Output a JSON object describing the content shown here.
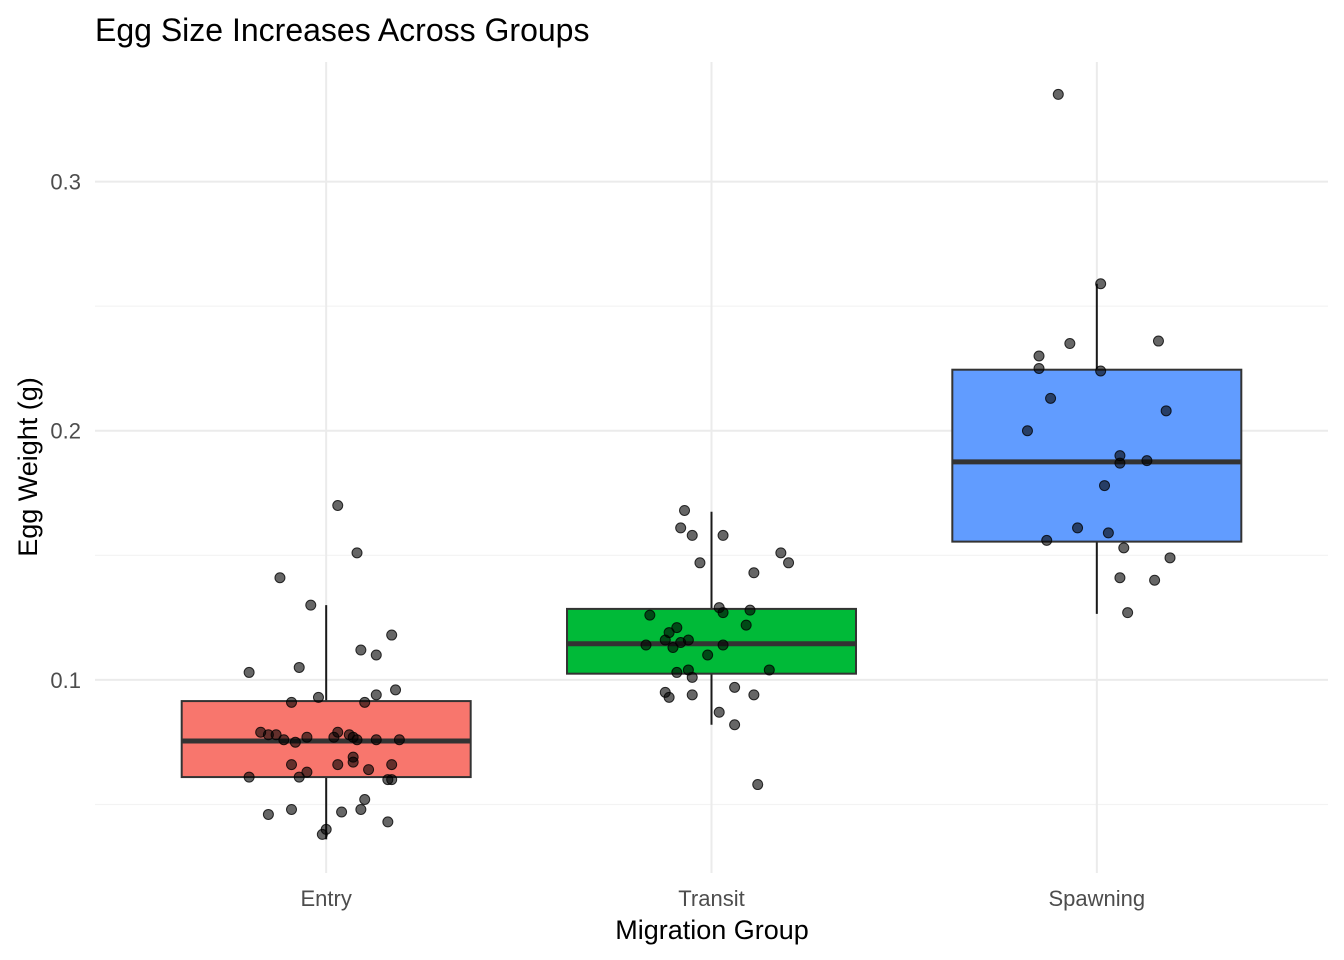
{
  "chart_data": {
    "type": "box",
    "title": "Egg Size Increases Across Groups",
    "xlabel": "Migration Group",
    "ylabel": "Egg Weight (g)",
    "ylim": [
      0.0225,
      0.348
    ],
    "y_ticks": [
      0.1,
      0.2,
      0.3
    ],
    "y_tick_labels": [
      "0.1",
      "0.2",
      "0.3"
    ],
    "y_minor_ticks": [
      0.05,
      0.15,
      0.25
    ],
    "grid": true,
    "legend": "none",
    "categories": [
      "Entry",
      "Transit",
      "Spawning"
    ],
    "boxes": [
      {
        "category": "Entry",
        "color": "#F8766D",
        "whisker_low": 0.036,
        "q1": 0.061,
        "median": 0.0755,
        "q3": 0.0915,
        "whisker_high": 0.13
      },
      {
        "category": "Transit",
        "color": "#00BA38",
        "whisker_low": 0.082,
        "q1": 0.1025,
        "median": 0.1145,
        "q3": 0.1285,
        "whisker_high": 0.1675
      },
      {
        "category": "Spawning",
        "color": "#619CFF",
        "whisker_low": 0.1265,
        "q1": 0.1555,
        "median": 0.1875,
        "q3": 0.2245,
        "whisker_high": 0.259
      }
    ],
    "points": [
      {
        "group": "Entry",
        "jitter": -0.2,
        "y": 0.103
      },
      {
        "group": "Entry",
        "jitter": -0.12,
        "y": 0.141
      },
      {
        "group": "Entry",
        "jitter": -0.04,
        "y": 0.13
      },
      {
        "group": "Entry",
        "jitter": 0.03,
        "y": 0.17
      },
      {
        "group": "Entry",
        "jitter": 0.08,
        "y": 0.151
      },
      {
        "group": "Entry",
        "jitter": 0.17,
        "y": 0.118
      },
      {
        "group": "Entry",
        "jitter": -0.07,
        "y": 0.105
      },
      {
        "group": "Entry",
        "jitter": 0.09,
        "y": 0.112
      },
      {
        "group": "Entry",
        "jitter": 0.13,
        "y": 0.11
      },
      {
        "group": "Entry",
        "jitter": -0.09,
        "y": 0.091
      },
      {
        "group": "Entry",
        "jitter": -0.02,
        "y": 0.093
      },
      {
        "group": "Entry",
        "jitter": 0.1,
        "y": 0.091
      },
      {
        "group": "Entry",
        "jitter": 0.13,
        "y": 0.094
      },
      {
        "group": "Entry",
        "jitter": 0.18,
        "y": 0.096
      },
      {
        "group": "Entry",
        "jitter": -0.17,
        "y": 0.079
      },
      {
        "group": "Entry",
        "jitter": -0.15,
        "y": 0.078
      },
      {
        "group": "Entry",
        "jitter": -0.13,
        "y": 0.078
      },
      {
        "group": "Entry",
        "jitter": -0.11,
        "y": 0.076
      },
      {
        "group": "Entry",
        "jitter": -0.08,
        "y": 0.075
      },
      {
        "group": "Entry",
        "jitter": -0.05,
        "y": 0.077
      },
      {
        "group": "Entry",
        "jitter": 0.02,
        "y": 0.077
      },
      {
        "group": "Entry",
        "jitter": 0.03,
        "y": 0.079
      },
      {
        "group": "Entry",
        "jitter": 0.06,
        "y": 0.078
      },
      {
        "group": "Entry",
        "jitter": 0.07,
        "y": 0.077
      },
      {
        "group": "Entry",
        "jitter": 0.08,
        "y": 0.076
      },
      {
        "group": "Entry",
        "jitter": 0.13,
        "y": 0.076
      },
      {
        "group": "Entry",
        "jitter": 0.19,
        "y": 0.076
      },
      {
        "group": "Entry",
        "jitter": -0.2,
        "y": 0.061
      },
      {
        "group": "Entry",
        "jitter": -0.09,
        "y": 0.066
      },
      {
        "group": "Entry",
        "jitter": -0.07,
        "y": 0.061
      },
      {
        "group": "Entry",
        "jitter": -0.05,
        "y": 0.063
      },
      {
        "group": "Entry",
        "jitter": 0.03,
        "y": 0.066
      },
      {
        "group": "Entry",
        "jitter": 0.07,
        "y": 0.067
      },
      {
        "group": "Entry",
        "jitter": 0.07,
        "y": 0.069
      },
      {
        "group": "Entry",
        "jitter": 0.11,
        "y": 0.064
      },
      {
        "group": "Entry",
        "jitter": 0.16,
        "y": 0.06
      },
      {
        "group": "Entry",
        "jitter": 0.17,
        "y": 0.06
      },
      {
        "group": "Entry",
        "jitter": 0.17,
        "y": 0.066
      },
      {
        "group": "Entry",
        "jitter": -0.15,
        "y": 0.046
      },
      {
        "group": "Entry",
        "jitter": -0.09,
        "y": 0.048
      },
      {
        "group": "Entry",
        "jitter": 0.04,
        "y": 0.047
      },
      {
        "group": "Entry",
        "jitter": 0.09,
        "y": 0.048
      },
      {
        "group": "Entry",
        "jitter": 0.1,
        "y": 0.052
      },
      {
        "group": "Entry",
        "jitter": 0.16,
        "y": 0.043
      },
      {
        "group": "Entry",
        "jitter": -0.01,
        "y": 0.038
      },
      {
        "group": "Entry",
        "jitter": 0.0,
        "y": 0.04
      },
      {
        "group": "Transit",
        "jitter": -0.08,
        "y": 0.161
      },
      {
        "group": "Transit",
        "jitter": -0.05,
        "y": 0.158
      },
      {
        "group": "Transit",
        "jitter": -0.03,
        "y": 0.147
      },
      {
        "group": "Transit",
        "jitter": -0.07,
        "y": 0.168
      },
      {
        "group": "Transit",
        "jitter": 0.03,
        "y": 0.158
      },
      {
        "group": "Transit",
        "jitter": 0.11,
        "y": 0.143
      },
      {
        "group": "Transit",
        "jitter": 0.18,
        "y": 0.151
      },
      {
        "group": "Transit",
        "jitter": 0.2,
        "y": 0.147
      },
      {
        "group": "Transit",
        "jitter": -0.16,
        "y": 0.126
      },
      {
        "group": "Transit",
        "jitter": 0.02,
        "y": 0.129
      },
      {
        "group": "Transit",
        "jitter": 0.03,
        "y": 0.127
      },
      {
        "group": "Transit",
        "jitter": 0.1,
        "y": 0.128
      },
      {
        "group": "Transit",
        "jitter": 0.09,
        "y": 0.122
      },
      {
        "group": "Transit",
        "jitter": -0.11,
        "y": 0.119
      },
      {
        "group": "Transit",
        "jitter": -0.09,
        "y": 0.121
      },
      {
        "group": "Transit",
        "jitter": -0.17,
        "y": 0.114
      },
      {
        "group": "Transit",
        "jitter": -0.12,
        "y": 0.116
      },
      {
        "group": "Transit",
        "jitter": -0.1,
        "y": 0.113
      },
      {
        "group": "Transit",
        "jitter": -0.08,
        "y": 0.115
      },
      {
        "group": "Transit",
        "jitter": -0.06,
        "y": 0.116
      },
      {
        "group": "Transit",
        "jitter": 0.03,
        "y": 0.114
      },
      {
        "group": "Transit",
        "jitter": -0.01,
        "y": 0.11
      },
      {
        "group": "Transit",
        "jitter": -0.09,
        "y": 0.103
      },
      {
        "group": "Transit",
        "jitter": -0.06,
        "y": 0.104
      },
      {
        "group": "Transit",
        "jitter": -0.05,
        "y": 0.101
      },
      {
        "group": "Transit",
        "jitter": 0.15,
        "y": 0.104
      },
      {
        "group": "Transit",
        "jitter": -0.12,
        "y": 0.095
      },
      {
        "group": "Transit",
        "jitter": -0.11,
        "y": 0.093
      },
      {
        "group": "Transit",
        "jitter": -0.05,
        "y": 0.094
      },
      {
        "group": "Transit",
        "jitter": 0.06,
        "y": 0.097
      },
      {
        "group": "Transit",
        "jitter": 0.11,
        "y": 0.094
      },
      {
        "group": "Transit",
        "jitter": 0.02,
        "y": 0.087
      },
      {
        "group": "Transit",
        "jitter": 0.06,
        "y": 0.082
      },
      {
        "group": "Transit",
        "jitter": 0.12,
        "y": 0.058
      },
      {
        "group": "Spawning",
        "jitter": -0.1,
        "y": 0.335
      },
      {
        "group": "Spawning",
        "jitter": 0.01,
        "y": 0.259
      },
      {
        "group": "Spawning",
        "jitter": -0.15,
        "y": 0.23
      },
      {
        "group": "Spawning",
        "jitter": -0.07,
        "y": 0.235
      },
      {
        "group": "Spawning",
        "jitter": 0.16,
        "y": 0.236
      },
      {
        "group": "Spawning",
        "jitter": -0.15,
        "y": 0.225
      },
      {
        "group": "Spawning",
        "jitter": 0.01,
        "y": 0.224
      },
      {
        "group": "Spawning",
        "jitter": -0.12,
        "y": 0.213
      },
      {
        "group": "Spawning",
        "jitter": 0.18,
        "y": 0.208
      },
      {
        "group": "Spawning",
        "jitter": -0.18,
        "y": 0.2
      },
      {
        "group": "Spawning",
        "jitter": 0.06,
        "y": 0.19
      },
      {
        "group": "Spawning",
        "jitter": 0.06,
        "y": 0.187
      },
      {
        "group": "Spawning",
        "jitter": 0.13,
        "y": 0.188
      },
      {
        "group": "Spawning",
        "jitter": 0.02,
        "y": 0.178
      },
      {
        "group": "Spawning",
        "jitter": -0.05,
        "y": 0.161
      },
      {
        "group": "Spawning",
        "jitter": 0.03,
        "y": 0.159
      },
      {
        "group": "Spawning",
        "jitter": -0.13,
        "y": 0.156
      },
      {
        "group": "Spawning",
        "jitter": 0.07,
        "y": 0.153
      },
      {
        "group": "Spawning",
        "jitter": 0.19,
        "y": 0.149
      },
      {
        "group": "Spawning",
        "jitter": 0.06,
        "y": 0.141
      },
      {
        "group": "Spawning",
        "jitter": 0.15,
        "y": 0.14
      },
      {
        "group": "Spawning",
        "jitter": 0.08,
        "y": 0.127
      }
    ]
  }
}
